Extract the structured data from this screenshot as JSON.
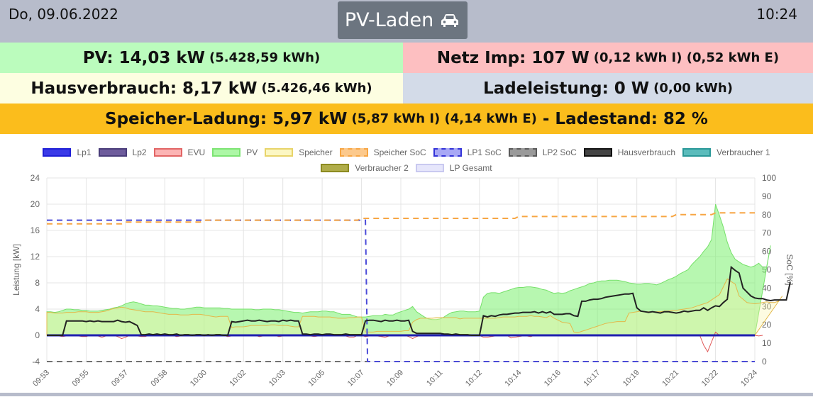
{
  "header": {
    "date": "Do, 09.06.2022",
    "time": "10:24",
    "button_label": "PV-Laden",
    "button_icon": "car-icon"
  },
  "pv": {
    "label": "PV: 14,03 kW",
    "detail": "(5.428,59 kWh)"
  },
  "netz": {
    "label": "Netz Imp: 107 W",
    "detail": "(0,12 kWh I) (0,52 kWh E)"
  },
  "haus": {
    "label": "Hausverbrauch: 8,17 kW",
    "detail": "(5.426,46 kWh)"
  },
  "lade": {
    "label": "Ladeleistung: 0 W",
    "detail": "(0,00 kWh)"
  },
  "speicher": {
    "label": "Speicher-Ladung: 5,97 kW",
    "detail": "(5,87 kWh I) (4,14 kWh E)",
    "ladestand": "- Ladestand: 82 %"
  },
  "colors": {
    "pv_bg": "#bbfcbd",
    "netz_bg": "#fdbfc1",
    "haus_bg": "#fdfee1",
    "lade_bg": "#d3dbe8",
    "speicher_bg": "#fbbd1c",
    "topbar": "#b7bccb"
  },
  "chart_data": {
    "type": "line",
    "ylabel": "Leistung [kW]",
    "y2label": "SoC [%]",
    "ylim": [
      -4,
      24
    ],
    "yticks": [
      "-4",
      "0",
      "4",
      "8",
      "12",
      "16",
      "20",
      "24"
    ],
    "y2lim": [
      0,
      100
    ],
    "y2ticks": [
      "0",
      "10",
      "20",
      "30",
      "40",
      "50",
      "60",
      "70",
      "80",
      "90",
      "100"
    ],
    "xticks": [
      "09:53",
      "09:55",
      "09:57",
      "09:58",
      "10:00",
      "10:02",
      "10:03",
      "10:05",
      "10:07",
      "10:09",
      "10:11",
      "10:12",
      "10:14",
      "10:16",
      "10:17",
      "10:19",
      "10:21",
      "10:22",
      "10:24"
    ],
    "legend": [
      {
        "name": "Lp1",
        "fill": "#3a3ae8",
        "stroke": "#1f1fd6",
        "dash": false
      },
      {
        "name": "Lp2",
        "fill": "#6e5c9c",
        "stroke": "#4a3d7a",
        "dash": false
      },
      {
        "name": "EVU",
        "fill": "#fcb4b4",
        "stroke": "#e26565",
        "dash": false
      },
      {
        "name": "PV",
        "fill": "#adf7a6",
        "stroke": "#7de473",
        "dash": false
      },
      {
        "name": "Speicher",
        "fill": "#fcf7c3",
        "stroke": "#e8d46a",
        "dash": false
      },
      {
        "name": "Speicher SoC",
        "fill": "#fcc98c",
        "stroke": "#f7a644",
        "dash": true
      },
      {
        "name": "LP1 SoC",
        "fill": "#a8a8f5",
        "stroke": "#3232d8",
        "dash": true
      },
      {
        "name": "LP2 SoC",
        "fill": "#9a9a9a",
        "stroke": "#5a5a5a",
        "dash": true
      },
      {
        "name": "Hausverbrauch",
        "fill": "#444444",
        "stroke": "#111111",
        "dash": false
      },
      {
        "name": "Verbraucher 1",
        "fill": "#5bbcbc",
        "stroke": "#2a9898",
        "dash": false
      },
      {
        "name": "Verbraucher 2",
        "fill": "#b0ad4a",
        "stroke": "#8c8a20",
        "dash": false
      },
      {
        "name": "LP Gesamt",
        "fill": "#e6e6fb",
        "stroke": "#c9c9f0",
        "dash": false
      }
    ],
    "x": [
      0,
      1,
      2,
      3,
      4,
      5,
      6,
      7,
      8,
      9,
      10,
      11,
      12,
      13,
      14,
      15,
      16,
      17,
      18,
      19,
      20,
      21,
      22,
      23,
      24,
      25,
      26,
      27,
      28,
      29,
      30,
      31,
      32,
      33,
      34,
      35,
      36,
      37,
      38,
      39,
      40,
      41,
      42,
      43,
      44,
      45,
      46,
      47,
      48,
      49,
      50,
      51,
      52,
      53,
      54,
      55,
      56,
      57,
      58,
      59,
      60,
      61,
      62,
      63,
      64,
      65,
      66,
      67,
      68,
      69,
      70,
      71,
      72,
      73,
      74,
      75,
      76,
      77,
      78,
      79,
      80,
      81,
      82,
      83,
      84,
      85,
      86,
      87,
      88,
      89,
      90,
      91,
      92,
      93,
      94,
      95,
      96,
      97,
      98,
      99,
      100,
      101,
      102,
      103,
      104,
      105,
      106,
      107,
      108,
      109,
      110,
      111,
      112,
      113,
      114,
      115,
      116,
      117,
      118,
      119,
      120,
      121,
      122,
      123,
      124,
      125,
      126,
      127,
      128,
      129,
      130,
      131,
      132,
      133,
      134,
      135,
      136,
      137,
      138,
      139,
      140,
      141,
      142,
      143,
      144,
      145,
      146,
      147,
      148,
      149,
      150,
      151,
      152,
      153,
      154,
      155,
      156,
      157,
      158,
      159,
      160,
      161,
      162,
      163,
      164,
      165,
      166,
      167,
      168,
      169,
      170,
      171,
      172,
      173,
      174,
      175,
      176,
      177,
      178,
      179,
      180
    ],
    "pv": [
      3.6,
      3.6,
      3.5,
      3.6,
      3.8,
      4.0,
      4.0,
      3.9,
      3.9,
      3.8,
      3.8,
      3.7,
      3.7,
      3.7,
      3.8,
      3.9,
      4.0,
      4.2,
      4.3,
      4.5,
      4.8,
      5.0,
      5.1,
      5.0,
      4.8,
      4.6,
      4.6,
      4.5,
      4.5,
      4.4,
      4.3,
      4.2,
      4.1,
      4.1,
      4.0,
      4.0,
      4.1,
      4.2,
      4.3,
      4.3,
      4.2,
      4.2,
      4.2,
      4.2,
      4.2,
      4.1,
      4.1,
      4.0,
      4.0,
      4.0,
      4.0,
      4.0,
      4.0,
      3.9,
      3.9,
      4.0,
      4.0,
      4.0,
      3.9,
      3.9,
      3.8,
      3.7,
      3.6,
      3.5,
      3.5,
      3.4,
      3.5,
      3.6,
      3.6,
      3.6,
      3.7,
      3.7,
      3.6,
      3.6,
      3.4,
      3.2,
      3.2,
      3.2,
      3.0,
      2.8,
      2.8,
      2.8,
      2.9,
      3.0,
      3.0,
      3.0,
      3.2,
      3.1,
      3.1,
      3.4,
      3.6,
      3.8,
      4.0,
      4.4,
      3.6,
      3.2,
      2.8,
      2.5,
      2.4,
      2.4,
      2.5,
      2.8,
      3.2,
      3.5,
      3.6,
      3.7,
      3.7,
      3.6,
      3.6,
      3.6,
      3.7,
      5.8,
      6.4,
      6.5,
      6.5,
      6.4,
      6.6,
      6.8,
      7.0,
      7.2,
      7.3,
      7.3,
      7.4,
      7.4,
      7.3,
      7.2,
      7.0,
      6.9,
      6.6,
      6.4,
      6.5,
      6.4,
      6.5,
      6.8,
      7.0,
      7.2,
      7.4,
      7.6,
      7.9,
      8.0,
      8.2,
      8.3,
      8.3,
      8.4,
      8.4,
      8.4,
      8.3,
      8.2,
      8.0,
      7.9,
      7.8,
      7.8,
      7.9,
      7.9,
      7.8,
      7.7,
      7.9,
      8.2,
      8.5,
      8.7,
      9.0,
      9.4,
      9.7,
      10.0,
      10.8,
      11.4,
      12.0,
      12.8,
      13.5,
      14.6,
      20.0,
      18.3,
      16.5,
      14.2,
      12.6,
      11.6,
      11.2,
      10.8,
      10.6,
      10.4,
      10.6,
      11.0,
      10.4,
      10.4,
      13.7
    ],
    "haus": [
      0.0,
      0.0,
      0.0,
      0.0,
      0.0,
      2.2,
      2.2,
      2.2,
      2.2,
      2.2,
      2.1,
      2.2,
      2.1,
      2.2,
      2.1,
      2.1,
      2.1,
      2.1,
      2.3,
      2.1,
      2.0,
      2.1,
      1.8,
      1.5,
      0.1,
      0.1,
      0.2,
      0.1,
      0.2,
      0.1,
      0.2,
      0.1,
      0.1,
      0.2,
      0.0,
      0.1,
      0.1,
      0.0,
      0.1,
      0.1,
      0.0,
      0.1,
      0.0,
      0.1,
      0.1,
      0.0,
      0.0,
      2.1,
      2.0,
      2.1,
      2.2,
      2.3,
      2.2,
      2.2,
      2.3,
      2.2,
      2.1,
      2.2,
      2.2,
      2.1,
      2.3,
      2.2,
      2.3,
      2.2,
      2.2,
      0.2,
      0.2,
      0.1,
      0.2,
      0.2,
      0.1,
      0.2,
      0.2,
      0.1,
      0.1,
      0.1,
      0.2,
      0.1,
      0.1,
      0.1,
      0.1,
      2.2,
      2.3,
      2.3,
      2.2,
      2.1,
      2.3,
      2.2,
      2.2,
      2.3,
      2.2,
      2.2,
      2.3,
      0.6,
      0.3,
      0.3,
      0.3,
      0.3,
      0.3,
      0.3,
      0.3,
      0.2,
      0.2,
      0.1,
      0.2,
      0.1,
      0.1,
      0.1,
      0.0,
      0.0,
      0.0,
      3.0,
      2.8,
      3.0,
      2.9,
      3.1,
      3.2,
      3.2,
      3.3,
      3.4,
      3.4,
      3.5,
      3.5,
      3.5,
      3.6,
      3.4,
      3.6,
      3.4,
      3.6,
      3.2,
      3.2,
      3.2,
      3.3,
      3.3,
      3.0,
      2.9,
      5.2,
      5.2,
      5.4,
      5.5,
      5.5,
      5.6,
      5.8,
      5.9,
      6.0,
      6.1,
      6.2,
      6.3,
      6.3,
      6.4,
      4.2,
      3.7,
      3.6,
      3.5,
      3.6,
      3.5,
      3.4,
      3.6,
      3.6,
      3.5,
      3.4,
      3.5,
      3.7,
      3.6,
      3.7,
      3.8,
      3.8,
      4.2,
      3.8,
      4.2,
      4.5,
      4.4,
      5.0,
      5.5,
      10.4,
      9.9,
      9.5,
      7.2,
      6.6,
      6.0,
      5.7,
      5.6,
      5.6,
      5.4,
      5.3,
      5.4,
      5.4,
      5.4,
      5.4,
      8.1
    ],
    "speicher": [
      3.5,
      3.5,
      3.4,
      3.4,
      3.4,
      3.5,
      3.5,
      3.5,
      3.6,
      3.6,
      3.6,
      3.5,
      3.5,
      3.5,
      3.6,
      3.7,
      3.9,
      4.1,
      4.2,
      4.3,
      4.2,
      4.0,
      3.9,
      3.8,
      3.7,
      3.6,
      3.6,
      3.6,
      3.5,
      3.4,
      3.3,
      3.2,
      3.2,
      3.2,
      3.1,
      3.1,
      3.1,
      3.2,
      3.2,
      3.2,
      3.1,
      3.0,
      2.9,
      2.8,
      2.9,
      2.9,
      2.9,
      1.2,
      1.3,
      1.3,
      1.3,
      1.4,
      1.5,
      1.5,
      1.5,
      1.5,
      1.5,
      1.6,
      1.6,
      1.5,
      1.5,
      1.5,
      1.4,
      1.3,
      1.3,
      2.9,
      2.9,
      2.9,
      2.9,
      2.8,
      2.8,
      2.8,
      2.8,
      2.7,
      2.6,
      2.6,
      2.6,
      2.7,
      2.7,
      2.8,
      2.8,
      0.5,
      0.5,
      0.5,
      0.6,
      0.6,
      0.6,
      0.6,
      0.6,
      0.6,
      0.6,
      0.7,
      0.7,
      2.0,
      2.4,
      2.6,
      2.6,
      2.6,
      2.6,
      2.7,
      2.7,
      2.7,
      2.7,
      2.7,
      2.7,
      2.5,
      2.6,
      2.6,
      2.6,
      2.6,
      2.6,
      2.6,
      2.6,
      2.6,
      2.6,
      2.7,
      2.8,
      2.8,
      2.8,
      2.8,
      2.9,
      2.9,
      2.9,
      3.0,
      2.9,
      2.9,
      2.8,
      2.7,
      3.0,
      2.6,
      2.3,
      2.0,
      1.9,
      1.8,
      0.5,
      0.4,
      0.6,
      0.8,
      1.0,
      1.2,
      1.4,
      1.6,
      1.8,
      1.9,
      2.0,
      2.1,
      2.1,
      2.1,
      3.4,
      3.5,
      3.6,
      3.7,
      3.6,
      3.6,
      3.6,
      3.6,
      3.6,
      3.7,
      3.7,
      3.8,
      3.8,
      3.9,
      4.0,
      4.1,
      4.2,
      4.4,
      4.6,
      4.8,
      5.0,
      5.4,
      5.8,
      6.2,
      7.4,
      8.6,
      8.2,
      7.8,
      6.0,
      5.5,
      5.0,
      4.9,
      4.8,
      4.9,
      5.0,
      5.1,
      5.0,
      5.0,
      5.2,
      6.0
    ],
    "evu": [
      0,
      0,
      0,
      -0.1,
      -0.2,
      -0.1,
      0,
      0,
      -0.1,
      -0.2,
      -0.2,
      0,
      0,
      -0.1,
      -0.3,
      -0.1,
      0,
      0,
      -0.2,
      -0.5,
      -0.3,
      0,
      0,
      -0.1,
      -0.2,
      -0.2,
      0,
      0,
      -0.1,
      -0.1,
      -0.1,
      0,
      0,
      -0.2,
      -0.1,
      0,
      0,
      -0.1,
      -0.1,
      0,
      0,
      0,
      -0.1,
      0,
      -0.1,
      0,
      -0.2,
      -0.1,
      0,
      0,
      -0.1,
      0,
      0,
      0,
      -0.2,
      -0.1,
      0,
      0,
      0,
      -0.2,
      -0.1,
      0,
      0,
      -0.1,
      -0.1,
      0,
      0,
      -0.1,
      -0.2,
      -0.1,
      0,
      0,
      -0.1,
      -0.1,
      0,
      -0.1,
      -0.1,
      -0.3,
      -0.3,
      0,
      0,
      -0.2,
      -0.1,
      0,
      -0.1,
      -0.2,
      -0.3,
      -0.1,
      0,
      0,
      -0.1,
      0,
      -0.2,
      -0.5,
      -0.2,
      0,
      0,
      0,
      0,
      0,
      0,
      0,
      -0.1,
      0,
      0,
      0,
      0,
      0,
      -0.1,
      0,
      0,
      -0.3,
      -0.3,
      -0.2,
      -0.1,
      -0.1,
      0,
      0,
      -0.4,
      -0.3,
      -0.2,
      -0.1,
      -0.1,
      -0.2,
      0,
      0,
      0,
      0,
      0,
      0,
      0,
      0,
      0,
      -0.1,
      0,
      0,
      0,
      0,
      0,
      0,
      0,
      0,
      -0.1,
      0,
      0,
      0,
      0,
      0,
      0,
      0,
      -0.1,
      0,
      0,
      0,
      0,
      0,
      0,
      0,
      0,
      0,
      -0.1,
      0,
      0,
      -0.1,
      0,
      0,
      0,
      -1.5,
      -2.5,
      -1.0,
      0.5,
      0,
      -0.1,
      0,
      0,
      0,
      -0.1,
      0,
      0,
      0,
      0,
      -0.1,
      0
    ],
    "speicher_soc": [
      75,
      75,
      75,
      75,
      75,
      75,
      75,
      75,
      75,
      75,
      75,
      75,
      75,
      75,
      75,
      75,
      75,
      75,
      75,
      75,
      76,
      76,
      76,
      76,
      76,
      76,
      76,
      76,
      76,
      76,
      76,
      76,
      76,
      76,
      76,
      76,
      76,
      76,
      76,
      76,
      77,
      77,
      77,
      77,
      77,
      77,
      77,
      77,
      77,
      77,
      77,
      77,
      77,
      77,
      77,
      77,
      77,
      77,
      77,
      77,
      77,
      77,
      77,
      77,
      77,
      77,
      77,
      77,
      77,
      77,
      77,
      77,
      77,
      77,
      77,
      77,
      77,
      77,
      77,
      77,
      78,
      78,
      78,
      78,
      78,
      78,
      78,
      78,
      78,
      78,
      78,
      78,
      78,
      78,
      78,
      78,
      78,
      78,
      78,
      78,
      78,
      78,
      78,
      78,
      78,
      78,
      78,
      78,
      78,
      78,
      78,
      78,
      78,
      78,
      78,
      78,
      78,
      78,
      78,
      78,
      79,
      79,
      79,
      79,
      79,
      79,
      79,
      79,
      79,
      79,
      79,
      79,
      79,
      79,
      79,
      79,
      79,
      79,
      79,
      79,
      79,
      79,
      79,
      79,
      79,
      79,
      79,
      79,
      79,
      79,
      79,
      79,
      79,
      79,
      79,
      79,
      79,
      79,
      79,
      79,
      80,
      80,
      80,
      80,
      80,
      80,
      80,
      80,
      80,
      80,
      81,
      81,
      81,
      81,
      81,
      81,
      81,
      81,
      81,
      81,
      81
    ],
    "lp1_soc_before": 77,
    "lp1_soc_drop_index": 81,
    "lp1_soc_after": 0
  }
}
